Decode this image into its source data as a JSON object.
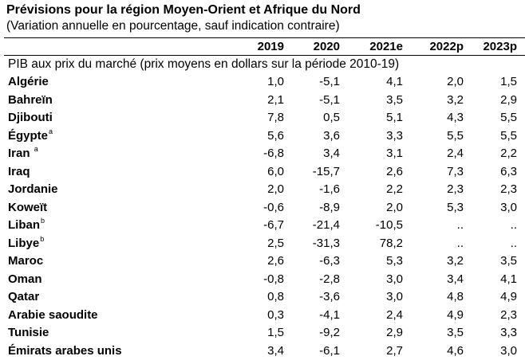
{
  "title": "Prévisions pour la région Moyen-Orient et Afrique du Nord",
  "subtitle": "(Variation annuelle en pourcentage, sauf indication contraire)",
  "columns": [
    "2019",
    "2020",
    "2021e",
    "2022p",
    "2023p"
  ],
  "section_label": "PIB aux prix du marché (prix moyens en dollars sur la période 2010-19)",
  "rows": [
    {
      "country": "Algérie",
      "note": "",
      "values": [
        "1,0",
        "-5,1",
        "4,1",
        "2,0",
        "1,5"
      ]
    },
    {
      "country": "Bahreïn",
      "note": "",
      "values": [
        "2,1",
        "-5,1",
        "3,5",
        "3,2",
        "2,9"
      ]
    },
    {
      "country": "Djibouti",
      "note": "",
      "values": [
        "7,8",
        "0,5",
        "5,1",
        "4,3",
        "5,5"
      ]
    },
    {
      "country": "Égypte",
      "note": "a",
      "values": [
        "5,6",
        "3,6",
        "3,3",
        "5,5",
        "5,5"
      ]
    },
    {
      "country": "Iran ",
      "note": "a",
      "values": [
        "-6,8",
        "3,4",
        "3,1",
        "2,4",
        "2,2"
      ]
    },
    {
      "country": "Iraq",
      "note": "",
      "values": [
        "6,0",
        "-15,7",
        "2,6",
        "7,3",
        "6,3"
      ]
    },
    {
      "country": "Jordanie",
      "note": "",
      "values": [
        "2,0",
        "-1,6",
        "2,2",
        "2,3",
        "2,3"
      ]
    },
    {
      "country": "Koweït",
      "note": "",
      "values": [
        "-0,6",
        "-8,9",
        "2,0",
        "5,3",
        "3,0"
      ]
    },
    {
      "country": "Liban",
      "note": "b",
      "values": [
        "-6,7",
        "-21,4",
        "-10,5",
        "..",
        ".."
      ]
    },
    {
      "country": "Libye",
      "note": "b",
      "values": [
        "2,5",
        "-31,3",
        "78,2",
        "..",
        ".."
      ]
    },
    {
      "country": "Maroc",
      "note": "",
      "values": [
        "2,6",
        "-6,3",
        "5,3",
        "3,2",
        "3,5"
      ]
    },
    {
      "country": "Oman",
      "note": "",
      "values": [
        "-0,8",
        "-2,8",
        "3,0",
        "3,4",
        "4,1"
      ]
    },
    {
      "country": "Qatar",
      "note": "",
      "values": [
        "0,8",
        "-3,6",
        "3,0",
        "4,8",
        "4,9"
      ]
    },
    {
      "country": "Arabie saoudite",
      "note": "",
      "values": [
        "0,3",
        "-4,1",
        "2,4",
        "4,9",
        "2,3"
      ]
    },
    {
      "country": "Tunisie",
      "note": "",
      "values": [
        "1,5",
        "-9,2",
        "2,9",
        "3,5",
        "3,3"
      ]
    },
    {
      "country": "Émirats arabes unis",
      "note": "",
      "values": [
        "3,4",
        "-6,1",
        "2,7",
        "4,6",
        "3,0"
      ]
    }
  ]
}
